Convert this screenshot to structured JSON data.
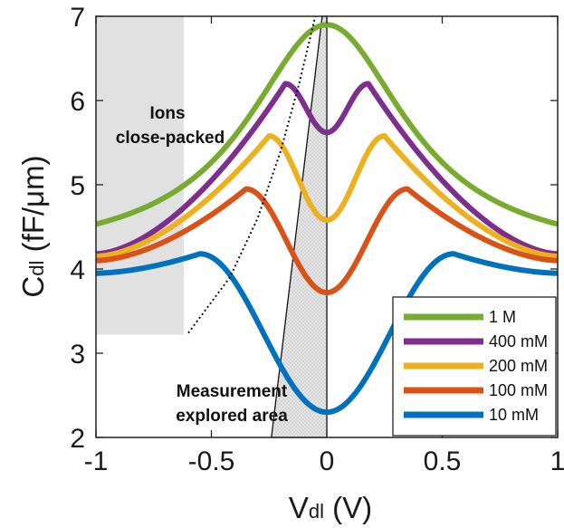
{
  "chart_data": {
    "type": "line",
    "xlabel": {
      "main": "V",
      "sub": "dl",
      "unit": " (V)"
    },
    "ylabel": {
      "main": "C",
      "sub": "dl",
      "unit": " (fF/μm)"
    },
    "xlim": [
      -1,
      1
    ],
    "ylim": [
      2,
      7
    ],
    "x_ticks": [
      -1,
      -0.5,
      0,
      0.5,
      1
    ],
    "x_tick_labels": [
      "-1",
      "-0.5",
      "0",
      "0.5",
      "1"
    ],
    "y_ticks": [
      2,
      3,
      4,
      5,
      6,
      7
    ],
    "y_tick_labels": [
      "2",
      "3",
      "4",
      "5",
      "6",
      "7"
    ],
    "grid": false,
    "legend_position": "bottom-right",
    "series": [
      {
        "name": "1 M",
        "color": "#77AC30",
        "min": 6.9,
        "peaks": [
          {
            "x": 0,
            "y": 6.9
          }
        ],
        "tail": 4.2
      },
      {
        "name": "400 mM",
        "color": "#7E2F8E",
        "min": 5.62,
        "peaks": [
          {
            "x": -0.18,
            "y": 6.2
          },
          {
            "x": 0.18,
            "y": 6.2
          }
        ],
        "tail": 4.18
      },
      {
        "name": "200 mM",
        "color": "#EDB120",
        "min": 4.58,
        "peaks": [
          {
            "x": -0.25,
            "y": 5.58
          },
          {
            "x": 0.25,
            "y": 5.58
          }
        ],
        "tail": 4.15
      },
      {
        "name": "100 mM",
        "color": "#D95319",
        "min": 3.72,
        "peaks": [
          {
            "x": -0.35,
            "y": 4.95
          },
          {
            "x": 0.35,
            "y": 4.95
          }
        ],
        "tail": 4.1
      },
      {
        "name": "10 mM",
        "color": "#0072BD",
        "min": 2.3,
        "peaks": [
          {
            "x": -0.55,
            "y": 4.18
          },
          {
            "x": 0.55,
            "y": 4.18
          }
        ],
        "tail": 3.95
      }
    ],
    "regions": {
      "ions_close_packed": {
        "label_lines": [
          "Ions",
          "close-packed"
        ],
        "x_range": [
          -1,
          -0.62
        ],
        "y_range": [
          3.22,
          7
        ]
      },
      "measurement": {
        "label_lines": [
          "Measurement",
          "explored area"
        ],
        "x_range_top": [
          -0.02,
          0.0
        ],
        "x_range_bottom": [
          -0.24,
          0.0
        ]
      }
    },
    "boundary_line": [
      [
        -0.6,
        3.24
      ],
      [
        -0.42,
        3.9
      ],
      [
        -0.3,
        4.6
      ],
      [
        -0.2,
        5.4
      ],
      [
        -0.12,
        6.2
      ],
      [
        -0.05,
        7.0
      ]
    ]
  }
}
